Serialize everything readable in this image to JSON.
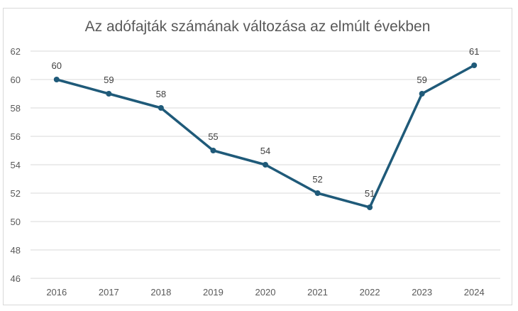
{
  "chart_data": {
    "type": "line",
    "title": "Az adófajták számának változása az elmúlt években",
    "categories": [
      "2016",
      "2017",
      "2018",
      "2019",
      "2020",
      "2021",
      "2022",
      "2023",
      "2024"
    ],
    "series": [
      {
        "values": [
          60,
          59,
          58,
          55,
          54,
          52,
          51,
          59,
          61
        ]
      }
    ],
    "ylim": [
      46,
      62
    ],
    "yticks": [
      46,
      48,
      50,
      52,
      54,
      56,
      58,
      60,
      62
    ],
    "grid": true,
    "data_labels": true,
    "legend": "none",
    "colors": {
      "line": "#1f5a79",
      "grid": "#d9d9d9",
      "text": "#595959"
    }
  }
}
